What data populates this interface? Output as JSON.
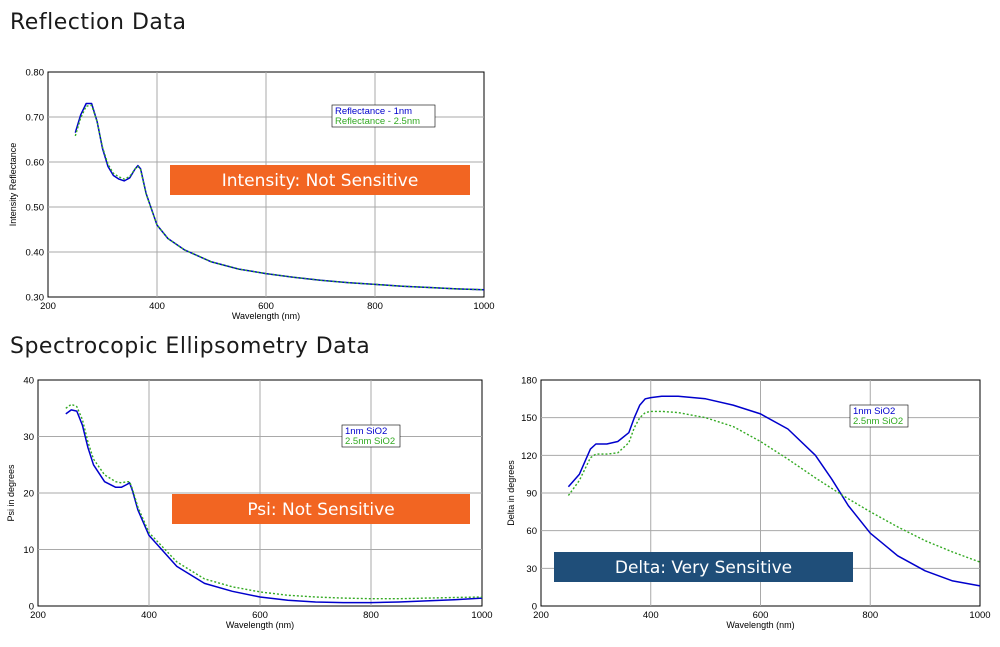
{
  "sections": {
    "reflection_title": "Reflection Data",
    "ellipsometry_title": "Spectrocopic Ellipsometry Data"
  },
  "chart_data": [
    {
      "id": "reflectance",
      "type": "line",
      "title": "",
      "xlabel": "Wavelength (nm)",
      "ylabel": "Intensity Reflectance",
      "xlim": [
        200,
        1000
      ],
      "ylim": [
        0.3,
        0.8
      ],
      "xticks": [
        200,
        400,
        600,
        800,
        1000
      ],
      "yticks": [
        0.3,
        0.4,
        0.5,
        0.6,
        0.7,
        0.8
      ],
      "ytick_decimals": 2,
      "grid": true,
      "legend_position": "top-right",
      "series": [
        {
          "name": "Reflectance - 1nm",
          "color": "#0000cc",
          "style": "solid",
          "x": [
            250,
            260,
            270,
            280,
            290,
            300,
            310,
            320,
            330,
            340,
            350,
            360,
            365,
            370,
            380,
            400,
            420,
            450,
            500,
            550,
            600,
            650,
            700,
            750,
            800,
            850,
            900,
            950,
            1000
          ],
          "y": [
            0.665,
            0.705,
            0.73,
            0.73,
            0.69,
            0.63,
            0.59,
            0.57,
            0.562,
            0.558,
            0.565,
            0.585,
            0.592,
            0.585,
            0.53,
            0.46,
            0.43,
            0.405,
            0.378,
            0.362,
            0.352,
            0.344,
            0.337,
            0.332,
            0.328,
            0.324,
            0.321,
            0.318,
            0.316
          ]
        },
        {
          "name": "Reflectance - 2.5nm",
          "color": "#33aa22",
          "style": "dotted",
          "x": [
            250,
            260,
            270,
            280,
            290,
            300,
            310,
            320,
            330,
            340,
            350,
            360,
            365,
            370,
            380,
            400,
            420,
            450,
            500,
            550,
            600,
            650,
            700,
            750,
            800,
            850,
            900,
            950,
            1000
          ],
          "y": [
            0.658,
            0.698,
            0.724,
            0.726,
            0.69,
            0.633,
            0.595,
            0.575,
            0.567,
            0.562,
            0.568,
            0.585,
            0.59,
            0.583,
            0.529,
            0.46,
            0.43,
            0.405,
            0.378,
            0.362,
            0.352,
            0.344,
            0.337,
            0.332,
            0.328,
            0.324,
            0.321,
            0.318,
            0.316
          ]
        }
      ],
      "banner": {
        "text": "Intensity:  Not Sensitive",
        "color": "#f26522"
      }
    },
    {
      "id": "psi",
      "type": "line",
      "title": "",
      "xlabel": "Wavelength (nm)",
      "ylabel": "Psi in degrees",
      "xlim": [
        200,
        1000
      ],
      "ylim": [
        0,
        40
      ],
      "xticks": [
        200,
        400,
        600,
        800,
        1000
      ],
      "yticks": [
        0,
        10,
        20,
        30,
        40
      ],
      "ytick_decimals": 0,
      "grid": true,
      "legend_position": "top-right",
      "series": [
        {
          "name": "1nm SiO2",
          "color": "#0000cc",
          "style": "solid",
          "x": [
            250,
            260,
            270,
            280,
            290,
            300,
            320,
            340,
            350,
            360,
            365,
            370,
            380,
            400,
            450,
            500,
            550,
            600,
            650,
            700,
            750,
            800,
            850,
            900,
            950,
            1000
          ],
          "y": [
            34.0,
            34.7,
            34.5,
            32.0,
            28.0,
            25.0,
            22.0,
            21.0,
            21.0,
            21.5,
            21.8,
            20.5,
            17.0,
            12.5,
            7.0,
            4.0,
            2.6,
            1.6,
            1.0,
            0.7,
            0.6,
            0.6,
            0.7,
            0.9,
            1.1,
            1.4
          ]
        },
        {
          "name": "2.5nm SiO2",
          "color": "#33aa22",
          "style": "dotted",
          "x": [
            250,
            260,
            270,
            280,
            290,
            300,
            320,
            340,
            350,
            360,
            365,
            370,
            380,
            400,
            450,
            500,
            550,
            600,
            650,
            700,
            750,
            800,
            850,
            900,
            950,
            1000
          ],
          "y": [
            35.0,
            35.7,
            35.3,
            33.0,
            29.0,
            26.0,
            23.2,
            22.0,
            21.8,
            22.0,
            22.0,
            20.8,
            17.5,
            13.0,
            7.8,
            4.8,
            3.4,
            2.5,
            1.9,
            1.6,
            1.4,
            1.3,
            1.3,
            1.4,
            1.5,
            1.6
          ]
        }
      ],
      "banner": {
        "text": "Psi:  Not Sensitive",
        "color": "#f26522"
      }
    },
    {
      "id": "delta",
      "type": "line",
      "title": "",
      "xlabel": "Wavelength (nm)",
      "ylabel": "Delta in degrees",
      "xlim": [
        200,
        1000
      ],
      "ylim": [
        0,
        180
      ],
      "xticks": [
        200,
        400,
        600,
        800,
        1000
      ],
      "yticks": [
        0,
        30,
        60,
        90,
        120,
        150,
        180
      ],
      "ytick_decimals": 0,
      "grid": true,
      "legend_position": "top-right",
      "series": [
        {
          "name": "1nm SiO2",
          "color": "#0000cc",
          "style": "solid",
          "x": [
            250,
            270,
            290,
            300,
            320,
            340,
            360,
            370,
            380,
            390,
            400,
            420,
            450,
            500,
            550,
            600,
            650,
            700,
            730,
            760,
            800,
            850,
            900,
            950,
            1000
          ],
          "y": [
            95,
            105,
            125,
            129,
            129,
            131,
            138,
            150,
            160,
            165,
            166,
            167,
            167,
            165,
            160,
            153,
            141,
            120,
            101,
            80,
            58,
            40,
            28,
            20,
            16
          ]
        },
        {
          "name": "2.5nm SiO2",
          "color": "#33aa22",
          "style": "dotted",
          "x": [
            250,
            270,
            290,
            300,
            320,
            340,
            360,
            370,
            380,
            390,
            400,
            420,
            450,
            500,
            550,
            600,
            650,
            700,
            750,
            800,
            850,
            900,
            950,
            1000
          ],
          "y": [
            88,
            100,
            118,
            121,
            121,
            122,
            130,
            142,
            150,
            154,
            155,
            155,
            154,
            150,
            143,
            131,
            117,
            102,
            88,
            75,
            63,
            52,
            43,
            35
          ]
        }
      ],
      "banner": {
        "text": "Delta:  Very Sensitive",
        "color": "#1f4e79"
      }
    }
  ]
}
